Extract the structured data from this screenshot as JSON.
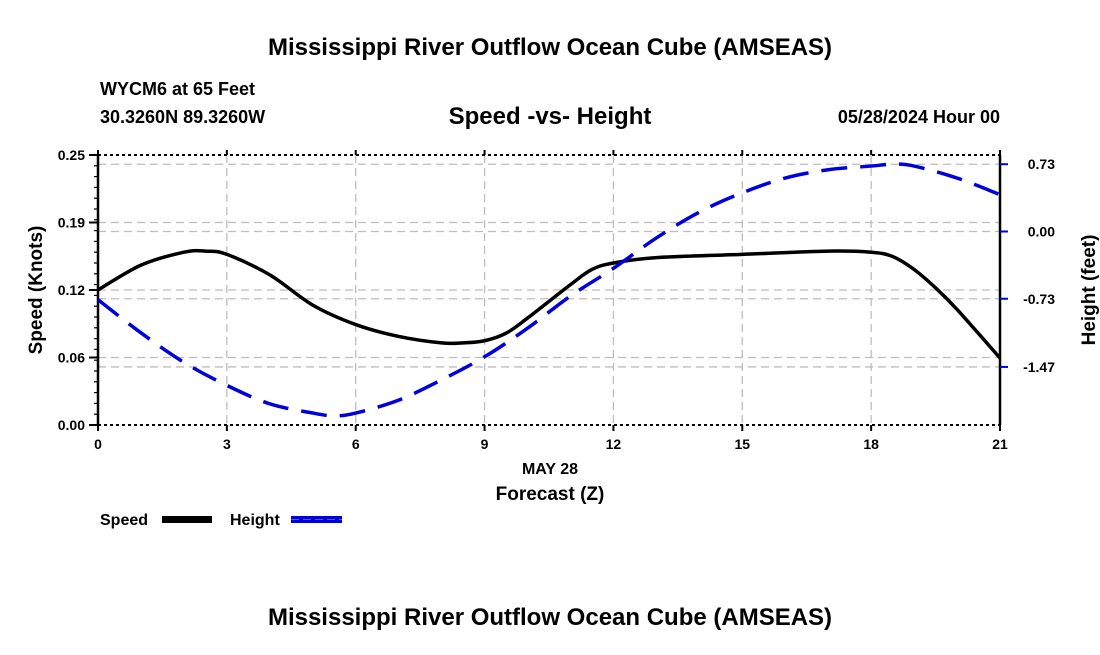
{
  "page": {
    "title_top": "Mississippi River Outflow Ocean Cube (AMSEAS)",
    "title_bottom": "Mississippi River Outflow Ocean Cube (AMSEAS)",
    "station": "WYCM6 at 65 Feet",
    "location": "30.3260N  89.3260W",
    "datetime": "05/28/2024 Hour 00"
  },
  "chart_data": {
    "type": "line",
    "title": "Speed -vs- Height",
    "xlabel": "Forecast (Z)",
    "xsublabel": "MAY 28",
    "ylabel": "Speed (Knots)",
    "y2label": "Height (feet)",
    "xlim": [
      0,
      21
    ],
    "ylim": [
      0,
      0.25
    ],
    "y2lim": [
      -2.1,
      0.83
    ],
    "xticks": [
      "0",
      "3",
      "6",
      "9",
      "12",
      "15",
      "18",
      "21"
    ],
    "xtick_values": [
      0,
      3,
      6,
      9,
      12,
      15,
      18,
      21
    ],
    "yticks": [
      "0.00",
      "0.06",
      "0.12",
      "0.19",
      "0.25"
    ],
    "ytick_values": [
      0,
      0.0625,
      0.125,
      0.1875,
      0.25
    ],
    "y2ticks": [
      "-1.47",
      "-0.73",
      "0.00",
      "0.73"
    ],
    "y2tick_values": [
      -1.47,
      -0.73,
      0,
      0.73
    ],
    "grid": true,
    "legend_placement": "bottom-left",
    "series": [
      {
        "name": "Speed",
        "axis": "left",
        "color": "#000000",
        "style": "solid",
        "x": [
          0,
          1,
          2,
          2.5,
          3,
          4,
          5,
          6,
          7,
          8,
          8.5,
          9,
          9.5,
          10,
          11,
          11.5,
          12,
          13,
          15,
          17,
          18,
          18.5,
          19,
          19.5,
          20,
          21
        ],
        "values": [
          0.125,
          0.148,
          0.16,
          0.161,
          0.158,
          0.139,
          0.111,
          0.093,
          0.082,
          0.076,
          0.076,
          0.078,
          0.085,
          0.099,
          0.13,
          0.144,
          0.15,
          0.155,
          0.158,
          0.161,
          0.16,
          0.156,
          0.144,
          0.127,
          0.107,
          0.062
        ]
      },
      {
        "name": "Height",
        "axis": "right",
        "color": "#0000dd",
        "style": "dashed",
        "x": [
          0,
          1,
          2,
          3,
          4,
          5,
          5.5,
          6,
          7,
          8,
          9,
          10,
          11,
          12,
          13,
          14,
          15,
          16,
          17,
          18,
          18.5,
          19,
          20,
          21
        ],
        "values": [
          -0.74,
          -1.1,
          -1.42,
          -1.67,
          -1.87,
          -1.97,
          -2.0,
          -1.97,
          -1.83,
          -1.61,
          -1.36,
          -1.05,
          -0.7,
          -0.4,
          -0.07,
          0.21,
          0.42,
          0.58,
          0.67,
          0.71,
          0.73,
          0.71,
          0.58,
          0.4
        ]
      }
    ]
  }
}
